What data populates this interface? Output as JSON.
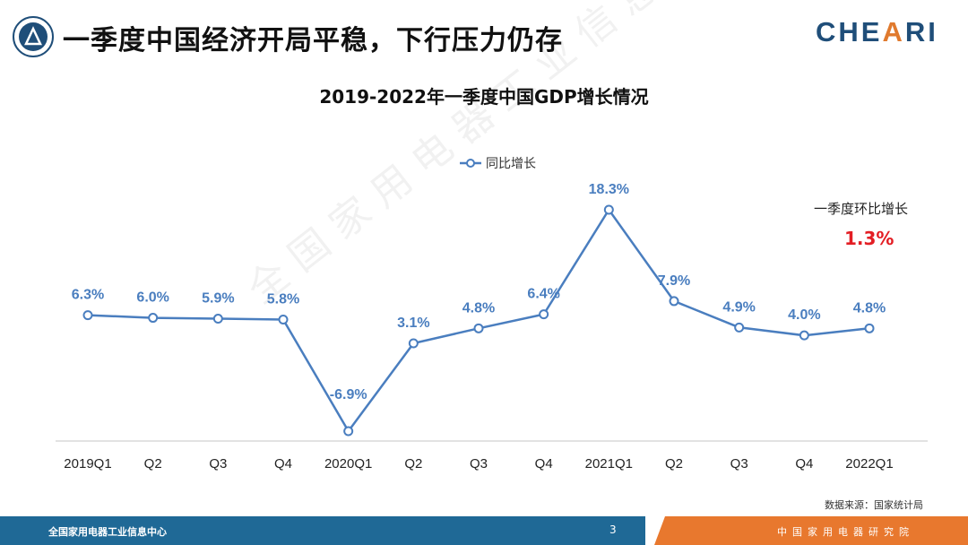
{
  "header": {
    "title": "一季度中国经济开局平稳，下行压力仍存",
    "brand_pre": "CHE",
    "brand_accent": "A",
    "brand_post": "RI"
  },
  "chart_data": {
    "type": "line",
    "title": "2019-2022年一季度中国GDP增长情况",
    "categories": [
      "2019Q1",
      "Q2",
      "Q3",
      "Q4",
      "2020Q1",
      "Q2",
      "Q3",
      "Q4",
      "2021Q1",
      "Q2",
      "Q3",
      "Q4",
      "2022Q1"
    ],
    "series": [
      {
        "name": "同比增长",
        "values": [
          6.3,
          6.0,
          5.9,
          5.8,
          -6.9,
          3.1,
          4.8,
          6.4,
          18.3,
          7.9,
          4.9,
          4.0,
          4.8
        ]
      }
    ],
    "data_labels": [
      "6.3%",
      "6.0%",
      "5.9%",
      "5.8%",
      "-6.9%",
      "3.1%",
      "4.8%",
      "6.4%",
      "18.3%",
      "7.9%",
      "4.9%",
      "4.0%",
      "4.8%"
    ],
    "ylim": [
      -8,
      20
    ],
    "grid": false,
    "legend_position": "top-center",
    "line_color": "#4a7ebf"
  },
  "annotation": {
    "label": "一季度环比增长",
    "value": "1.3%"
  },
  "source": "数据来源：国家统计局",
  "watermark": "全国家用电器工业信息中心",
  "footer": {
    "left_text": "全国家用电器工业信息中心",
    "page_number": "3",
    "right_text": "中国家用电器研究院"
  }
}
